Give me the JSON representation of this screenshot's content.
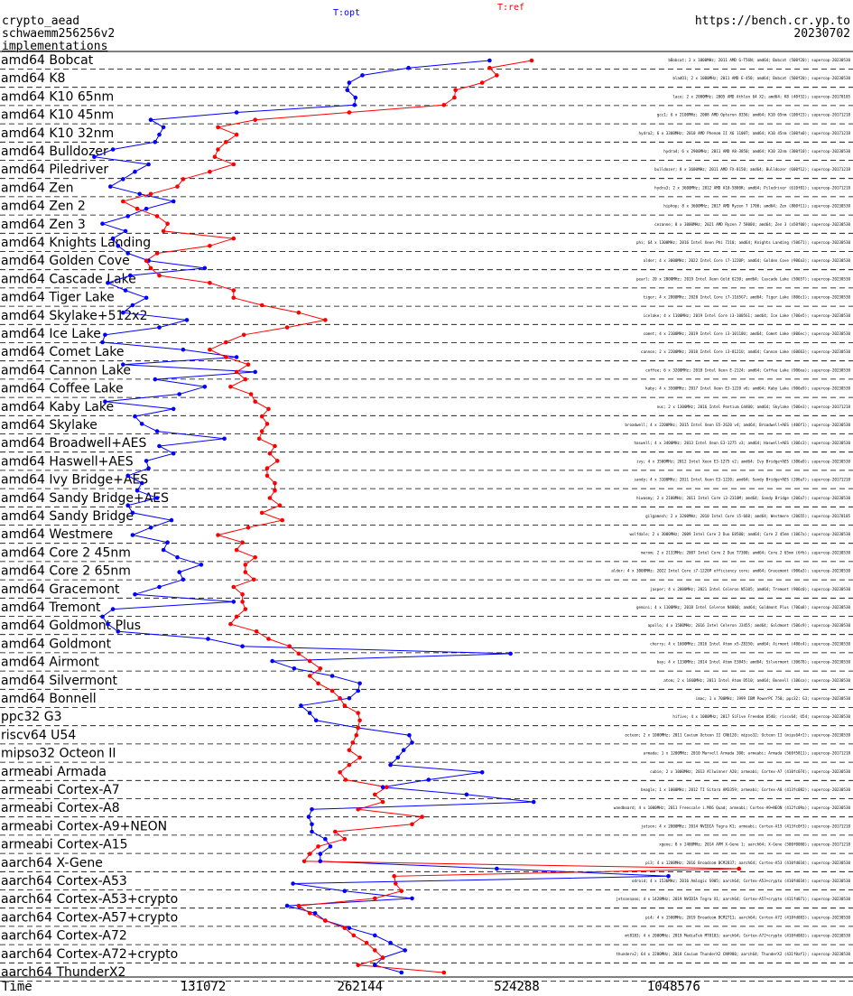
{
  "header": {
    "line1": "crypto_aead",
    "line2": "schwaemm256256v2",
    "link": "implementations",
    "url": "https://bench.cr.yp.to",
    "date": "20230702"
  },
  "colors": {
    "opt": "#0000ff",
    "ref": "#ff0000",
    "text": "#000000",
    "note_ref": "#ff0000"
  },
  "chart_data": {
    "type": "line",
    "xscale": "log2",
    "xlabel": "Time",
    "xticks": [
      131072,
      262144,
      524288,
      1048576
    ],
    "series": [
      {
        "name": "T:opt",
        "color": "#0000ff",
        "x": [
          465000,
          325000,
          265000,
          250000,
          248000,
          257000,
          256000,
          152000,
          104000,
          110000,
          108000,
          106000,
          88000,
          81000,
          103000,
          97000,
          92000,
          87000,
          99000,
          115000,
          102000,
          94000,
          84000,
          93000,
          88000,
          90000,
          94000,
          103000,
          132000,
          95000,
          86000,
          93000,
          102000,
          96000,
          92000,
          122000,
          108000,
          85000,
          84000,
          120000,
          152000,
          92000,
          165000,
          106000,
          132000,
          118000,
          85000,
          115000,
          97000,
          100000,
          107000,
          144000,
          108000,
          115000,
          102000,
          103000,
          94000,
          100000,
          98000,
          107000,
          94000,
          96000,
          114000,
          104000,
          96000,
          112000,
          110000,
          117000,
          130000,
          118000,
          120000,
          108000,
          97000,
          150000,
          88000,
          84000,
          86000,
          90000,
          134000,
          156000,
          510000,
          178000,
          196000,
          232000,
          262000,
          260000,
          250000,
          202000,
          210000,
          216000,
          260000,
          326000,
          330000,
          318000,
          310000,
          300000,
          450000,
          355000,
          290000,
          420000,
          565000,
          212000,
          209000,
          212000,
          212000,
          225000,
          230000,
          220000,
          220000,
          480000,
          1025000,
          195000,
          245000,
          330000,
          190000,
          215000,
          225000,
          250000,
          280000,
          300000,
          320000,
          290000,
          280000,
          315000
        ],
        "y": [
          64,
          68,
          60,
          60,
          60,
          57,
          57,
          57,
          56,
          56,
          55,
          55,
          50,
          50,
          50,
          51,
          51,
          50,
          51,
          51,
          49,
          48,
          47,
          45,
          45,
          45,
          45,
          44,
          44,
          42,
          42,
          40,
          38,
          38,
          37,
          36,
          36,
          34,
          33,
          32,
          31,
          31,
          30,
          29,
          27,
          27,
          26,
          25,
          27,
          24,
          22,
          22,
          21,
          20,
          20,
          22,
          22,
          21,
          21,
          20,
          19,
          20,
          19,
          18,
          18,
          17,
          16,
          16,
          15,
          14,
          14,
          14,
          12,
          12,
          10,
          8,
          9,
          8,
          9,
          6,
          6,
          6,
          4,
          5,
          5,
          3,
          3,
          3,
          3,
          3,
          3,
          3,
          4,
          4,
          3,
          4,
          4,
          5,
          3,
          2,
          2,
          1,
          1,
          2,
          1,
          1,
          1,
          0,
          0,
          0,
          0,
          1,
          1,
          1,
          1,
          1,
          1,
          1,
          0,
          1,
          1,
          1,
          1,
          1
        ]
      },
      {
        "name": "T:ref",
        "color": "#ff0000",
        "x": [
          560000,
          465000,
          480000,
          450000,
          400000,
          398000,
          380000,
          250000,
          165000,
          140000,
          152000,
          145000,
          140000,
          138000,
          150000,
          135000,
          120000,
          117000,
          104000,
          92000,
          98000,
          107000,
          112000,
          110000,
          150000,
          135000,
          107000,
          102000,
          104000,
          108000,
          135000,
          150000,
          150000,
          170000,
          200000,
          225000,
          190000,
          157000,
          145000,
          135000,
          145000,
          160000,
          152000,
          158000,
          148000,
          162000,
          165000,
          175000,
          170000,
          174000,
          170000,
          168000,
          180000,
          176000,
          182000,
          174000,
          174000,
          180000,
          180000,
          176000,
          184000,
          170000,
          186000,
          160000,
          140000,
          156000,
          152000,
          165000,
          158000,
          158000,
          164000,
          150000,
          156000,
          156000,
          158000,
          152000,
          148000,
          166000,
          175000,
          192000,
          200000,
          210000,
          220000,
          210000,
          218000,
          232000,
          240000,
          245000,
          260000,
          262000,
          260000,
          258000,
          254000,
          250000,
          262000,
          250000,
          240000,
          246000,
          295000,
          280000,
          290000,
          260000,
          345000,
          330000,
          235000,
          245000,
          218000,
          210000,
          205000,
          1400000,
          305000,
          307000,
          315000,
          280000,
          200000,
          210000,
          225000,
          245000,
          255000,
          270000,
          280000,
          290000,
          260000,
          380000
        ],
        "y": [
          64,
          62,
          60,
          59,
          59,
          58,
          58,
          57,
          55,
          55,
          52,
          50,
          50,
          51,
          50,
          48,
          47,
          47,
          45,
          45,
          44,
          44,
          42,
          42,
          41,
          40,
          40,
          39,
          38,
          38,
          37,
          37,
          35,
          34,
          33,
          32,
          32,
          30,
          29,
          29,
          30,
          28,
          27,
          27,
          25,
          25,
          23,
          23,
          22,
          22,
          21,
          21,
          21,
          19,
          19,
          20,
          19,
          19,
          18,
          18,
          18,
          17,
          17,
          17,
          15,
          15,
          14,
          13,
          13,
          13,
          13,
          12,
          12,
          12,
          11,
          11,
          11,
          11,
          10,
          10,
          9,
          9,
          9,
          8,
          8,
          8,
          7,
          6,
          6,
          6,
          6,
          5,
          5,
          5,
          5,
          4,
          4,
          4,
          3,
          3,
          3,
          2,
          2,
          1,
          2,
          1,
          1,
          0,
          0,
          0,
          0,
          0,
          0,
          0,
          0,
          1,
          1,
          1,
          1,
          0,
          0,
          0,
          0,
          0
        ]
      }
    ],
    "categories": [
      "amd64 Bobcat",
      "amd64 K8",
      "amd64 K10 65nm",
      "amd64 K10 45nm",
      "amd64 K10 32nm",
      "amd64 Bulldozer",
      "amd64 Piledriver",
      "amd64 Zen",
      "amd64 Zen 2",
      "amd64 Zen 3",
      "amd64 Knights Landing",
      "amd64 Golden Cove",
      "amd64 Cascade Lake",
      "amd64 Tiger Lake",
      "amd64 Skylake+512x2",
      "amd64 Ice Lake",
      "amd64 Comet Lake",
      "amd64 Cannon Lake",
      "amd64 Coffee Lake",
      "amd64 Kaby Lake",
      "amd64 Skylake",
      "amd64 Broadwell+AES",
      "amd64 Haswell+AES",
      "amd64 Ivy Bridge+AES",
      "amd64 Sandy Bridge+AES",
      "amd64 Sandy Bridge",
      "amd64 Westmere",
      "amd64 Core 2 45nm",
      "amd64 Core 2 65nm",
      "amd64 Gracemont",
      "amd64 Tremont",
      "amd64 Goldmont Plus",
      "amd64 Goldmont",
      "amd64 Airmont",
      "amd64 Silvermont",
      "amd64 Bonnell",
      "ppc32 G3",
      "riscv64 U54",
      "mipso32 Octeon II",
      "armeabi Armada",
      "armeabi Cortex-A7",
      "armeabi Cortex-A8",
      "armeabi Cortex-A9+NEON",
      "armeabi Cortex-A15",
      "aarch64 X-Gene",
      "aarch64 Cortex-A53",
      "aarch64 Cortex-A53+crypto",
      "aarch64 Cortex-A57+crypto",
      "aarch64 Cortex-A72",
      "aarch64 Cortex-A72+crypto",
      "aarch64 ThunderX2"
    ],
    "machine_notes": [
      {
        "text": "bBobcat; 2 x 1000MHz; 2011 AMD G-T56N; amd64; Bobcat (500f20); supercop-20230530",
        "tag": ""
      },
      {
        "text": "bladO1; 2 x 1000MHz; 2011 AMD E-450; amd64; Bobcat (500f20); supercop-20230530",
        "tag": ""
      },
      {
        "text": "lace; 2 x 2000MHz; 2005 AMD Athlon 64 X2; amd64; K8 (40f32); supercop-20170105",
        "tag": ""
      },
      {
        "text": "gcc1; 6 x 2100MHz; 2008 AMD Opteron 8356; amd64; K10 65nm (100f23); supercop-20171218",
        "tag": ""
      },
      {
        "text": "hydra2; 6 x 3300MHz; 2010 AMD Phenom II X6 1100T; amd64; K10 45nm (100fa0); supercop-20171218",
        "tag": ""
      },
      {
        "text": "hydra4; 6 x 2900MHz; 2011 AMD A8-3850; amd64; K10 32nm (300f10); supercop-20230530",
        "tag": ""
      },
      {
        "text": "bulldozer; 8 x 3600MHz; 2011 AMD FX-8150; amd64; Bulldozer (600f12); supercop-20171218",
        "tag": ""
      },
      {
        "text": "hydra3; 2 x 3600MHz; 2012 AMD A10-5800K; amd64; Piledriver (610f01); supercop-20171218",
        "tag": ""
      },
      {
        "text": "hiphop; 8 x 3600MHz; 2017 AMD Ryzen 7 1700; amd64; Zen (800f11); supercop-20230530",
        "tag": ""
      },
      {
        "text": "cezanne; 8 x 3000MHz; 2021 AMD Ryzen 7 5800U; amd64; Zen 3 (a50f00); supercop-20230530",
        "tag": ""
      },
      {
        "text": "phi; 64 x 1300MHz; 2016 Intel Xeon Phi 7210; amd64; Knights Landing (50671); supercop-20230530",
        "tag": ""
      },
      {
        "text": "alder; 4 x 3000MHz; 2022 Intel Core i7-1220P; amd64; Golden Cove (906a3); supercop-20230530",
        "tag": ""
      },
      {
        "text": "pearl; 20 x 2000MHz; 2019 Intel Xeon Gold 6230; amd64; Cascade Lake (50657); supercop-20230530",
        "tag": ""
      },
      {
        "text": "tiger; 4 x 2800MHz; 2020 Intel Core i7-1165G7; amd64; Tiger Lake (806c1); supercop-20230530",
        "tag": ""
      },
      {
        "text": "icelake; 4 x 1100MHz; 2019 Intel Core i3-1005G1; amd64; Ice Lake (706e5); supercop-20230530",
        "tag": ""
      },
      {
        "text": "comet; 4 x 2100MHz; 2019 Intel Core i3-10110U; amd64; Comet Lake (806ec); supercop-20230530",
        "tag": ""
      },
      {
        "text": "cannon; 2 x 2200MHz; 2018 Intel Core i3-8121U; amd64; Cannon Lake (60663); supercop-20230530",
        "tag": ""
      },
      {
        "text": "coffee; 6 x 3200MHz; 2018 Intel Xeon E-2124; amd64; Coffee Lake (906ea); supercop-20230530",
        "tag": ""
      },
      {
        "text": "kaby; 4 x 3500MHz; 2017 Intel Xeon E3-1220 v6; amd64; Kaby Lake (906e9); supercop-20230530",
        "tag": ""
      },
      {
        "text": "nuc; 2 x 1300MHz; 2016 Intel Pentium G4400; amd64; Skylake (506e3); supercop-20171218",
        "tag": ""
      },
      {
        "text": "broadwell; 4 x 2200MHz; 2015 Intel Xeon E5-2620 v4; amd64; Broadwell+AES (406f1); supercop-20230530",
        "tag": ""
      },
      {
        "text": "haswell; 4 x 3400MHz; 2013 Intel Xeon E3-1275 v3; amd64; Haswell+AES (306c3); supercop-20230530",
        "tag": ""
      },
      {
        "text": "ivy; 4 x 3500MHz; 2012 Intel Xeon E3-1275 v2; amd64; Ivy Bridge+AES (306a9); supercop-20230530",
        "tag": ""
      },
      {
        "text": "sandy; 4 x 3100MHz; 2011 Intel Xeon E3-1220; amd64; Sandy Bridge+AES (206a7); supercop-20171218",
        "tag": ""
      },
      {
        "text": "hiwasmy; 2 x 2100MHz; 2011 Intel Core i3-2310M; amd64; Sandy Bridge (206a7); supercop-20230530",
        "tag": ""
      },
      {
        "text": "gilgamesh; 2 x 3200MHz; 2010 Intel Core i5-660; amd64; Westmere (20655); supercop-20170105",
        "tag": ""
      },
      {
        "text": "wolfdale; 2 x 3000MHz; 2009 Intel Core 2 Duo E8500; amd64; Core 2 45nm (1067a); supercop-20230530",
        "tag": ""
      },
      {
        "text": "merom; 2 x 2133MHz; 2007 Intel Core 2 Duo T7300; amd64; Core 2 65nm (6fb); supercop-20230530",
        "tag": ""
      },
      {
        "text": "alder; 4 x 3000MHz; 2022 Intel Core i7-1220P efficiency core; amd64; Gracemont (906a3); supercop-20230530",
        "tag": ""
      },
      {
        "text": "jasper; 4 x 2000MHz; 2021 Intel Celeron N5105; amd64; Tremont (906c0); supercop-20230530",
        "tag": ""
      },
      {
        "text": "gemini; 4 x 1100MHz; 2018 Intel Celeron N4000; amd64; Goldmont Plus (706a8); supercop-20230530",
        "tag": ""
      },
      {
        "text": "apollo; 4 x 1500MHz; 2016 Intel Celeron J3455; amd64; Goldmont (506c9); supercop-20230530",
        "tag": ""
      },
      {
        "text": "cherry; 4 x 1600MHz; 2016 Intel Atom x5-Z8350; amd64; Airmont (406c4); supercop-20230530",
        "tag": ""
      },
      {
        "text": "bay; 4 x 1330MHz; 2014 Intel Atom E3845; amd64; Silvermont (30678); supercop-20230530",
        "tag": ""
      },
      {
        "text": "atom; 2 x 1660MHz; 2011 Intel Atom D510; amd64; Bonnell (106ca); supercop-20230530",
        "tag": ""
      },
      {
        "text": "imac; 1 x 700MHz; 1999 IBM PowerPC 750; ppc32; G3; supercop-20230530",
        "tag": ""
      },
      {
        "text": "hifive; 4 x 1000MHz; 2017 SiFive Freedom U540; riscv64; U54; supercop-20230530",
        "tag": ""
      },
      {
        "text": "octeon; 2 x 1000MHz; 2011 Cavium Octeon II CN6120; mipso32; Octeon II (mips64r2); supercop-20230530",
        "tag": ""
      },
      {
        "text": "armada; 1 x 1200MHz; 2010 Marvell Armada 300; armeabi; Armada (560f5811); supercop-20171218",
        "tag": ""
      },
      {
        "text": "cubie; 2 x 1000MHz; 2013 Allwinner A20; armeabi; Cortex-A7 (410fc074); supercop-20230530",
        "tag": ""
      },
      {
        "text": "beagle; 1 x 1000MHz; 2012 TI Sitara AM3359; armeabi; Cortex-A8 (413fc082); supercop-20230530",
        "tag": ""
      },
      {
        "text": "wandboard; 4 x 1000MHz; 2011 Freescale i.MX6 Quad; armeabi; Cortex-A9+NEON (412fc09a); supercop-20230530",
        "tag": ""
      },
      {
        "text": "jetson; 4 x 2000MHz; 2014 NVIDIA Tegra K1; armeabi; Cortex-A15 (413fc0f3); supercop-20171218",
        "tag": ""
      },
      {
        "text": "xgene; 8 x 2400MHz; 2014 APM X-Gene 1; aarch64; X-Gene (500f0000); supercop-20171218",
        "tag": ""
      },
      {
        "text": "pi3; 4 x 1200MHz; 2016 Broadcom BCM2837; aarch64; Cortex-A53 (410fd034); supercop-20230530",
        "tag": ""
      },
      {
        "text": "odroid; 4 x 1536MHz; 2016 Amlogic S905; aarch64; Cortex-A53+crypto (410fd034); supercop-20230530",
        "tag": ""
      },
      {
        "text": "jetsonnano; 4 x 1428MHz; 2019 NVIDIA Tegra X1; aarch64; Cortex-A57+crypto (411fd071); supercop-20230530",
        "tag": ""
      },
      {
        "text": "pi4; 4 x 1500MHz; 2019 Broadcom BCM2711; aarch64; Cortex-A72 (410fd083); supercop-20230530",
        "tag": ""
      },
      {
        "text": "mt8183; 4 x 2000MHz; 2019 MediaTek MT8183; aarch64; Cortex-A72+crypto (410fd083); supercop-20230530",
        "tag": ""
      },
      {
        "text": "thunderx2; 64 x 2200MHz; 2018 Cavium ThunderX2 CN9980; aarch64; ThunderX2 (431f0af1); supercop-20230530",
        "tag": ""
      }
    ]
  }
}
